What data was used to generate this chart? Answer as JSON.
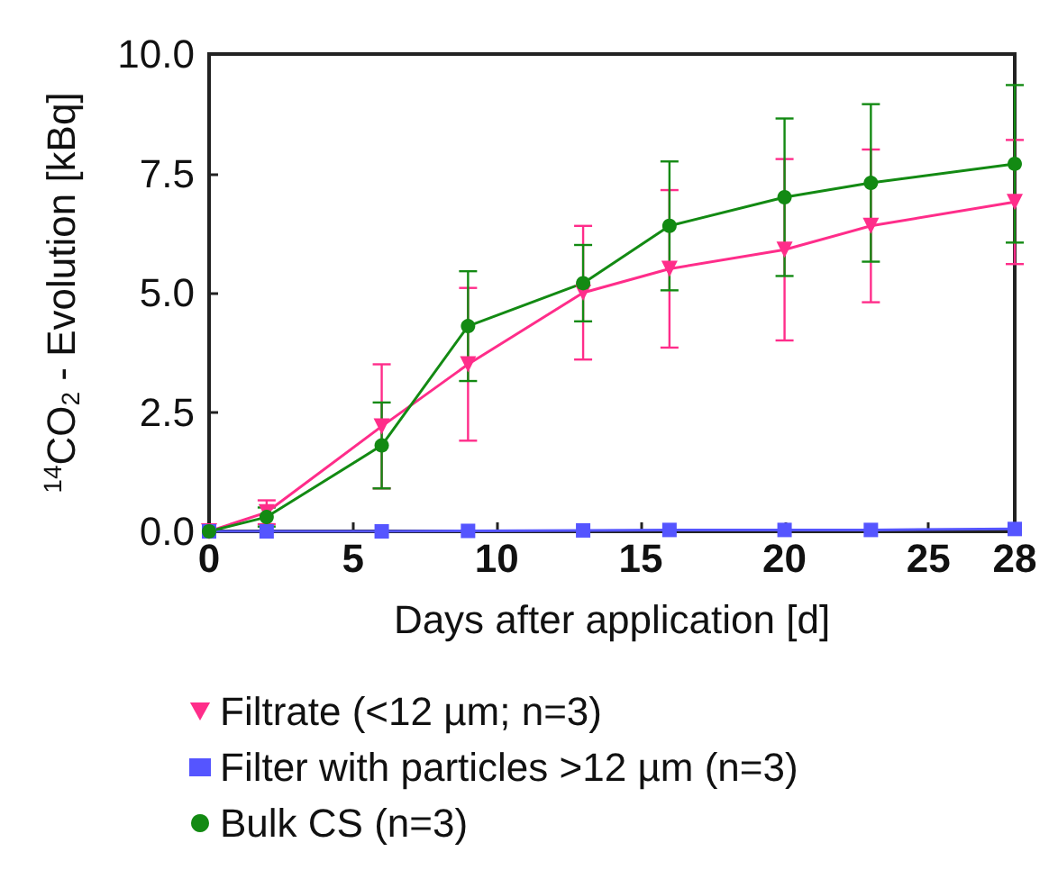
{
  "chart_data": {
    "type": "line",
    "xlabel": "Days after application [d]",
    "ylabel": "$^{14}$CO$_{2}$ - Evolution [kBq]",
    "x": [
      0,
      2,
      6,
      9,
      13,
      16,
      20,
      23,
      28
    ],
    "series": [
      {
        "name": "Filtrate (<12 µm; n=3)",
        "color": "#ff2d8a",
        "marker": "triangle",
        "values": [
          0,
          0.4,
          2.2,
          3.5,
          5.0,
          5.5,
          5.9,
          6.4,
          6.9
        ],
        "errors": [
          null,
          0.25,
          1.3,
          1.6,
          1.4,
          1.65,
          1.9,
          1.6,
          1.3
        ]
      },
      {
        "name": "Filter with particles >12 µm (n=3)",
        "color": "#5555ff",
        "marker": "square",
        "values": [
          0,
          0,
          0,
          0.01,
          0.02,
          0.03,
          0.03,
          0.03,
          0.05
        ]
      },
      {
        "name": "Bulk CS (n=3)",
        "color": "#138a13",
        "marker": "circle",
        "values": [
          0,
          0.3,
          1.8,
          4.3,
          5.2,
          6.4,
          7.0,
          7.3,
          7.7
        ],
        "errors": [
          null,
          0.2,
          0.9,
          1.15,
          0.8,
          1.35,
          1.65,
          1.65,
          1.65
        ]
      }
    ],
    "xlim": [
      0,
      28
    ],
    "xticks": [
      0,
      5,
      10,
      15,
      20,
      25,
      28
    ],
    "ylim": [
      0,
      10
    ],
    "yticks": [
      {
        "value": 0,
        "label": "0.0"
      },
      {
        "value": 2.5,
        "label": "2.5"
      },
      {
        "value": 5,
        "label": "5.0"
      },
      {
        "value": 7.5,
        "label": "7.5"
      },
      {
        "value": 10,
        "label": "10.0"
      }
    ],
    "grid": false,
    "legend": "bottom",
    "line_style": "solid"
  }
}
